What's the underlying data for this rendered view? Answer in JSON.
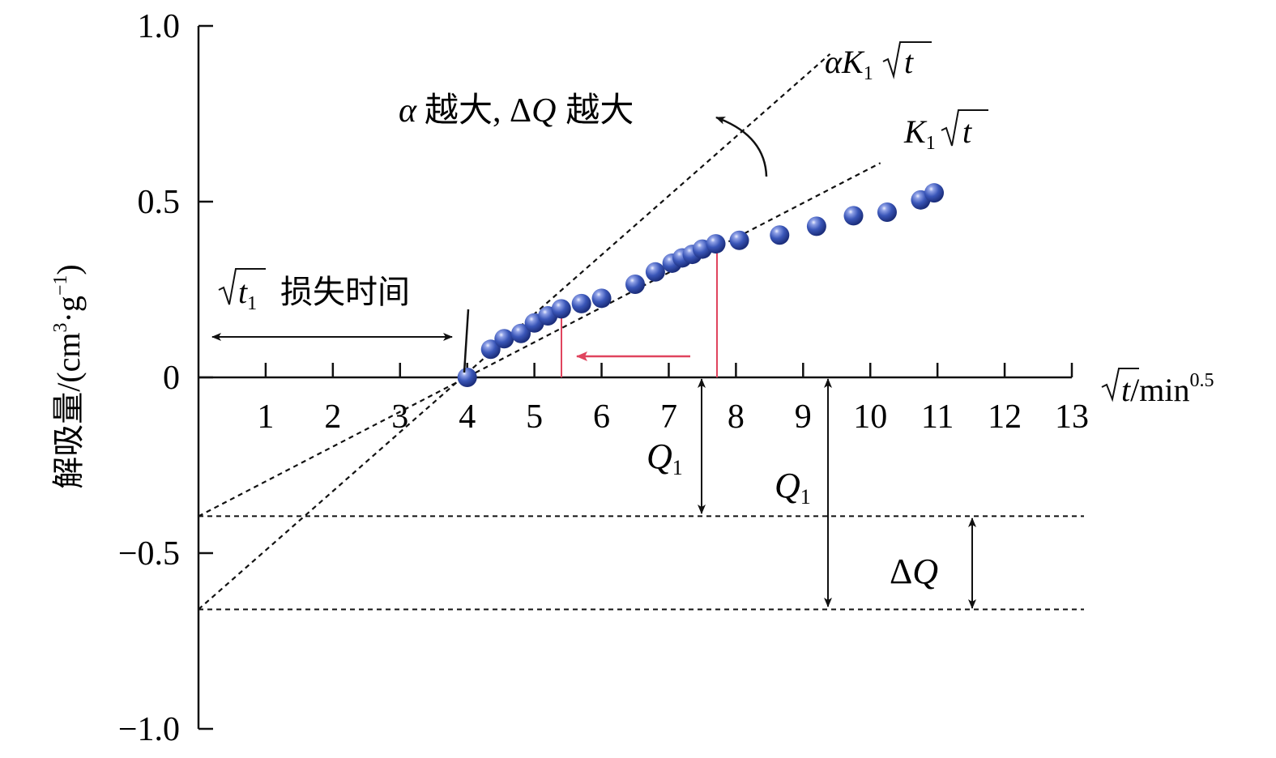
{
  "chart_data": {
    "type": "scatter",
    "xlabel_prefix": "t",
    "xlabel_unit": "/min",
    "xlabel_exp": "0.5",
    "ylabel_main": "解吸量/(cm",
    "ylabel_sup1": "3",
    "ylabel_mid": "·g",
    "ylabel_sup2": "−1",
    "ylabel_end": ")",
    "xlim": [
      0,
      13
    ],
    "ylim": [
      -1.0,
      1.0
    ],
    "xticks": [
      1,
      2,
      3,
      4,
      5,
      6,
      7,
      8,
      9,
      10,
      11,
      12,
      13
    ],
    "yticks": [
      {
        "value": 1.0,
        "label": "1.0"
      },
      {
        "value": 0.5,
        "label": "0.5"
      },
      {
        "value": 0,
        "label": "0"
      },
      {
        "value": -0.5,
        "label": "−0.5"
      },
      {
        "value": -1.0,
        "label": "−1.0"
      }
    ],
    "series": [
      {
        "color": "#2f4aa8",
        "points": [
          {
            "x": 4.0,
            "y": 0.0
          },
          {
            "x": 4.35,
            "y": 0.08
          },
          {
            "x": 4.55,
            "y": 0.11
          },
          {
            "x": 4.8,
            "y": 0.125
          },
          {
            "x": 5.0,
            "y": 0.155
          },
          {
            "x": 5.2,
            "y": 0.175
          },
          {
            "x": 5.4,
            "y": 0.195
          },
          {
            "x": 5.7,
            "y": 0.21
          },
          {
            "x": 6.0,
            "y": 0.225
          },
          {
            "x": 6.5,
            "y": 0.265
          },
          {
            "x": 6.8,
            "y": 0.3
          },
          {
            "x": 7.05,
            "y": 0.325
          },
          {
            "x": 7.2,
            "y": 0.34
          },
          {
            "x": 7.35,
            "y": 0.35
          },
          {
            "x": 7.5,
            "y": 0.365
          },
          {
            "x": 7.7,
            "y": 0.38
          },
          {
            "x": 8.05,
            "y": 0.39
          },
          {
            "x": 8.65,
            "y": 0.405
          },
          {
            "x": 9.2,
            "y": 0.43
          },
          {
            "x": 9.75,
            "y": 0.46
          },
          {
            "x": 10.25,
            "y": 0.47
          },
          {
            "x": 10.75,
            "y": 0.505
          },
          {
            "x": 10.95,
            "y": 0.525
          }
        ]
      }
    ],
    "fit_lines": [
      {
        "x0": 0,
        "y0": -0.395,
        "x1": 10.15,
        "y1": 0.61
      },
      {
        "x0": 0,
        "y0": -0.66,
        "x1": 9.4,
        "y1": 0.92
      }
    ],
    "reference_levels": [
      -0.395,
      -0.66
    ],
    "labels": {
      "line2_alpha": "α",
      "line2_k": "K",
      "line2_sub": "1",
      "line2_t": "t",
      "line1_k": "K",
      "line1_sub": "1",
      "line1_t": "t",
      "annot_alpha": "α",
      "annot_mid": "越大, Δ",
      "annot_q": "Q",
      "annot_end": "越大",
      "loss_t": "t",
      "loss_sub": "1",
      "loss_text": "损失时间",
      "q1_a": "Q",
      "q1_a_sub": "1",
      "q1_b": "Q",
      "q1_b_sub": "1",
      "dq_delta": "Δ",
      "dq_q": "Q"
    },
    "colors": {
      "axis": "#111111",
      "fit": "#111111",
      "red_marker": "#e0445e",
      "point": "#2f4aa8"
    }
  }
}
